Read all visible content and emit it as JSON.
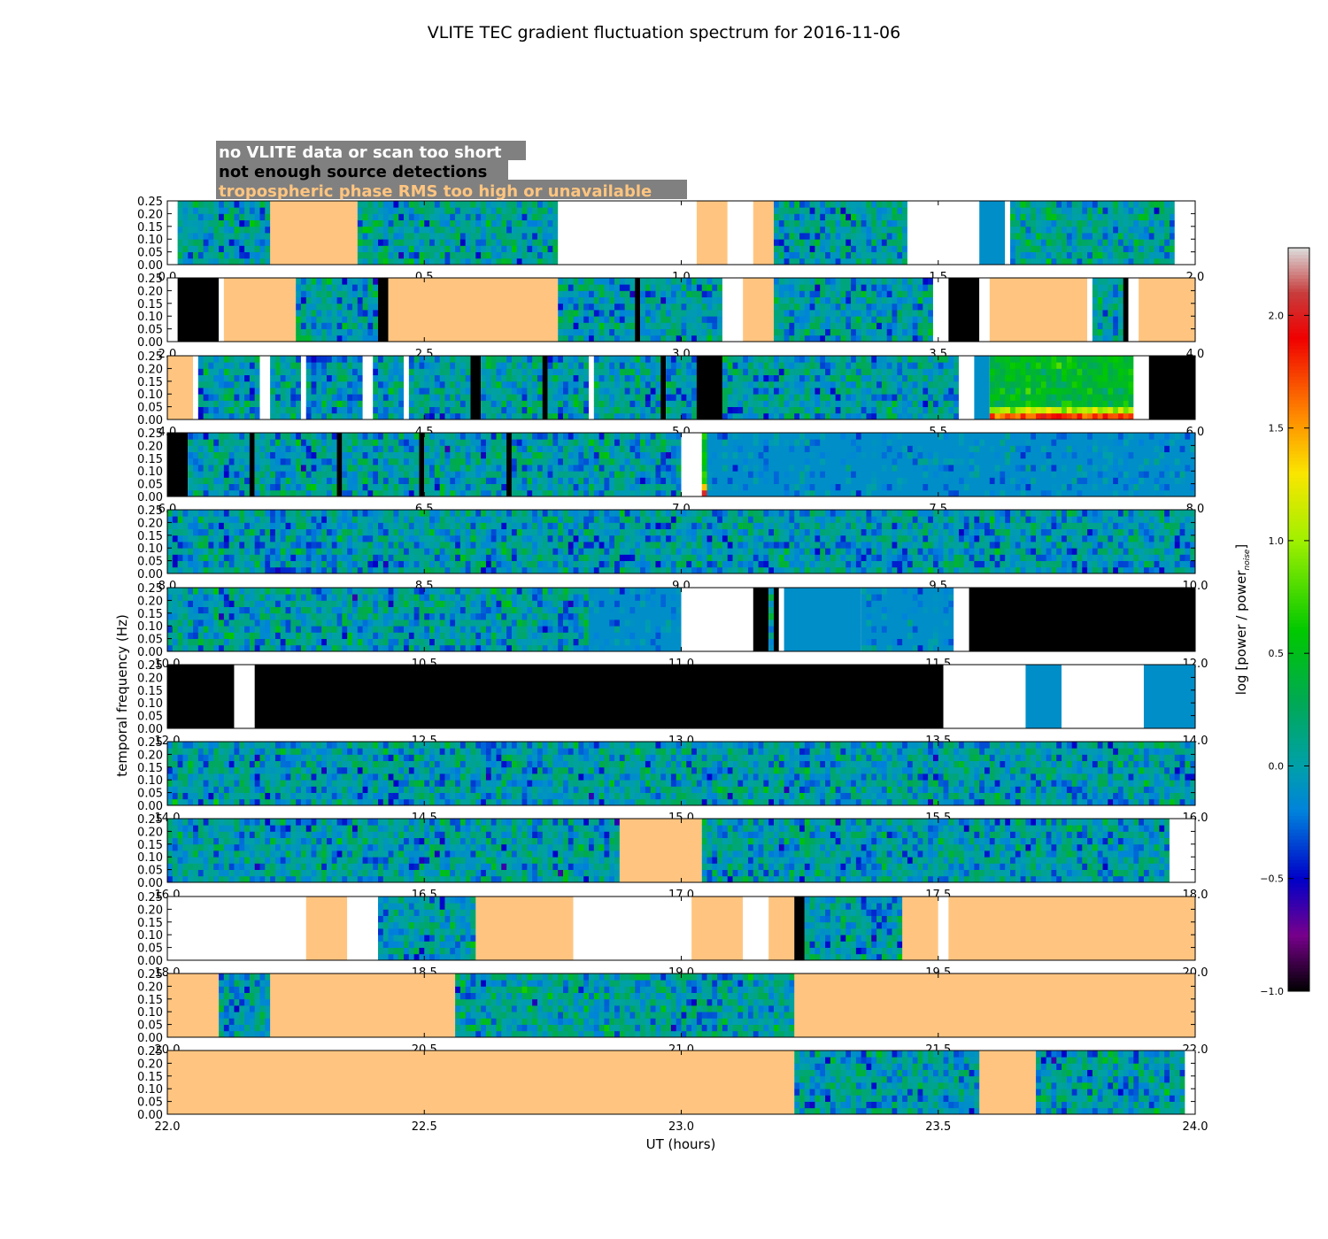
{
  "chart_data": {
    "type": "heatmap",
    "title": "VLITE TEC gradient fluctuation spectrum for 2016-11-06",
    "xlabel": "UT (hours)",
    "ylabel": "temporal frequency (Hz)",
    "colorbar_label": "log [power / power",
    "colorbar_label_sub": "noise",
    "colorbar_label_end": "]",
    "colorbar": {
      "min": -1.0,
      "max": 2.3,
      "ticks": [
        "−1.0",
        "−0.5",
        "0.0",
        "0.5",
        "1.0",
        "1.5",
        "2.0"
      ],
      "tick_values": [
        -1.0,
        -0.5,
        0.0,
        0.5,
        1.0,
        1.5,
        2.0
      ],
      "colormap": "spectral"
    },
    "y_ticks": [
      "0.00",
      "0.05",
      "0.10",
      "0.15",
      "0.20",
      "0.25"
    ],
    "y_tick_values": [
      0,
      0.05,
      0.1,
      0.15,
      0.2,
      0.25
    ],
    "ylim": [
      0,
      0.25
    ],
    "legend": {
      "placement": "top-left",
      "background": "#808080",
      "entries": [
        {
          "label": "no VLITE data or scan too short",
          "color": "#ffffff"
        },
        {
          "label": "not enough source detections",
          "color": "#000000"
        },
        {
          "label": "tropospheric phase RMS too high or unavailable",
          "color": "#ffc580"
        }
      ]
    },
    "category_colors": {
      "nodata": "#ffffff",
      "nodet": "#000000",
      "tropo": "#ffc580"
    },
    "panels": [
      {
        "xlim": [
          0,
          2
        ],
        "ticks": [
          "0.0",
          "0.5",
          "1.0",
          "1.5",
          "2.0"
        ],
        "tick_values": [
          0,
          0.5,
          1,
          1.5,
          2
        ],
        "segments": [
          [
            0,
            0.02,
            "nodata"
          ],
          [
            0.02,
            0.2,
            "data",
            0
          ],
          [
            0.2,
            0.37,
            "tropo"
          ],
          [
            0.37,
            0.76,
            "data",
            0.05
          ],
          [
            0.76,
            1.03,
            "nodata"
          ],
          [
            1.03,
            1.09,
            "tropo"
          ],
          [
            1.09,
            1.14,
            "nodata"
          ],
          [
            1.14,
            1.18,
            "tropo"
          ],
          [
            1.18,
            1.44,
            "data",
            0
          ],
          [
            1.44,
            1.58,
            "nodata"
          ],
          [
            1.58,
            1.63,
            "flat"
          ],
          [
            1.63,
            1.64,
            "nodata"
          ],
          [
            1.64,
            1.96,
            "data",
            0.05
          ],
          [
            1.96,
            2,
            "nodata"
          ]
        ]
      },
      {
        "xlim": [
          2,
          4
        ],
        "ticks": [
          "2.0",
          "2.5",
          "3.0",
          "3.5",
          "4.0"
        ],
        "tick_values": [
          2,
          2.5,
          3,
          3.5,
          4
        ],
        "segments": [
          [
            2,
            2.02,
            "nodata"
          ],
          [
            2.02,
            2.1,
            "nodet"
          ],
          [
            2.1,
            2.11,
            "nodata"
          ],
          [
            2.11,
            2.25,
            "tropo"
          ],
          [
            2.25,
            2.41,
            "data",
            0
          ],
          [
            2.41,
            2.43,
            "nodet"
          ],
          [
            2.43,
            2.76,
            "tropo"
          ],
          [
            2.76,
            2.91,
            "data",
            0
          ],
          [
            2.91,
            2.92,
            "nodet"
          ],
          [
            2.92,
            3.08,
            "data",
            0
          ],
          [
            3.08,
            3.12,
            "nodata"
          ],
          [
            3.12,
            3.18,
            "tropo"
          ],
          [
            3.18,
            3.49,
            "data",
            0
          ],
          [
            3.49,
            3.52,
            "nodata"
          ],
          [
            3.52,
            3.58,
            "nodet"
          ],
          [
            3.58,
            3.6,
            "nodata"
          ],
          [
            3.6,
            3.79,
            "tropo"
          ],
          [
            3.79,
            3.8,
            "nodata"
          ],
          [
            3.8,
            3.86,
            "data",
            0
          ],
          [
            3.86,
            3.87,
            "nodet"
          ],
          [
            3.87,
            3.89,
            "nodata"
          ],
          [
            3.89,
            4,
            "tropo"
          ]
        ]
      },
      {
        "xlim": [
          4,
          6
        ],
        "ticks": [
          "4.0",
          "4.5",
          "5.0",
          "5.5",
          "6.0"
        ],
        "tick_values": [
          4,
          4.5,
          5,
          5.5,
          6
        ],
        "segments": [
          [
            4,
            4.05,
            "tropo"
          ],
          [
            4.05,
            4.06,
            "nodata"
          ],
          [
            4.06,
            4.18,
            "data",
            0
          ],
          [
            4.18,
            4.2,
            "nodata"
          ],
          [
            4.2,
            4.26,
            "data",
            0
          ],
          [
            4.26,
            4.27,
            "nodata"
          ],
          [
            4.27,
            4.38,
            "data",
            0
          ],
          [
            4.38,
            4.4,
            "nodata"
          ],
          [
            4.4,
            4.46,
            "data",
            0
          ],
          [
            4.46,
            4.47,
            "nodata"
          ],
          [
            4.47,
            4.59,
            "data",
            0
          ],
          [
            4.59,
            4.61,
            "nodet"
          ],
          [
            4.61,
            4.73,
            "data",
            0
          ],
          [
            4.73,
            4.74,
            "nodet"
          ],
          [
            4.74,
            4.82,
            "data",
            0
          ],
          [
            4.82,
            4.83,
            "nodata"
          ],
          [
            4.83,
            4.96,
            "data",
            0
          ],
          [
            4.96,
            4.97,
            "nodet"
          ],
          [
            4.97,
            5.03,
            "data",
            0
          ],
          [
            5.03,
            5.08,
            "nodet"
          ],
          [
            5.08,
            5.14,
            "data",
            0
          ],
          [
            5.14,
            5.22,
            "data",
            0
          ],
          [
            5.22,
            5.34,
            "data",
            0
          ],
          [
            5.34,
            5.42,
            "data",
            0
          ],
          [
            5.42,
            5.54,
            "data",
            0
          ],
          [
            5.54,
            5.57,
            "nodata"
          ],
          [
            5.57,
            5.6,
            "flat"
          ],
          [
            5.6,
            5.88,
            "data",
            0.45
          ],
          [
            5.88,
            5.91,
            "nodata"
          ],
          [
            5.91,
            6,
            "nodet"
          ]
        ]
      },
      {
        "xlim": [
          6,
          8
        ],
        "ticks": [
          "6.0",
          "6.5",
          "7.0",
          "7.5",
          "8.0"
        ],
        "tick_values": [
          6,
          6.5,
          7,
          7.5,
          8
        ],
        "segments": [
          [
            6,
            6.04,
            "nodet"
          ],
          [
            6.04,
            6.16,
            "data",
            0
          ],
          [
            6.16,
            6.17,
            "nodet"
          ],
          [
            6.17,
            6.33,
            "data",
            0
          ],
          [
            6.33,
            6.34,
            "nodet"
          ],
          [
            6.34,
            6.49,
            "data",
            0
          ],
          [
            6.49,
            6.5,
            "nodet"
          ],
          [
            6.5,
            6.66,
            "data",
            0
          ],
          [
            6.66,
            6.67,
            "nodet"
          ],
          [
            6.67,
            7,
            "data",
            0
          ],
          [
            7,
            7.04,
            "nodata"
          ],
          [
            7.04,
            7.05,
            "data",
            0.5
          ],
          [
            7.05,
            8,
            "calm",
            0
          ]
        ]
      },
      {
        "xlim": [
          8,
          10
        ],
        "ticks": [
          "8.0",
          "8.5",
          "9.0",
          "9.5",
          "10.0"
        ],
        "tick_values": [
          8,
          8.5,
          9,
          9.5,
          10
        ],
        "segments": [
          [
            8,
            10,
            "data",
            -0.02
          ]
        ]
      },
      {
        "xlim": [
          10,
          12
        ],
        "ticks": [
          "10.0",
          "10.5",
          "11.0",
          "11.5",
          "12.0"
        ],
        "tick_values": [
          10,
          10.5,
          11,
          11.5,
          12
        ],
        "segments": [
          [
            10,
            10.82,
            "data",
            0
          ],
          [
            10.82,
            11,
            "calm",
            0
          ],
          [
            11,
            11.14,
            "nodata"
          ],
          [
            11.14,
            11.17,
            "nodet"
          ],
          [
            11.17,
            11.18,
            "data",
            0
          ],
          [
            11.18,
            11.19,
            "nodet"
          ],
          [
            11.19,
            11.2,
            "nodata"
          ],
          [
            11.2,
            11.35,
            "flat"
          ],
          [
            11.35,
            11.53,
            "calm",
            0
          ],
          [
            11.53,
            11.56,
            "nodata"
          ],
          [
            11.56,
            12,
            "nodet"
          ]
        ]
      },
      {
        "xlim": [
          12,
          14
        ],
        "ticks": [
          "12.0",
          "12.5",
          "13.0",
          "13.5",
          "14.0"
        ],
        "tick_values": [
          12,
          12.5,
          13,
          13.5,
          14
        ],
        "segments": [
          [
            12,
            12.13,
            "nodet"
          ],
          [
            12.13,
            12.17,
            "nodata"
          ],
          [
            12.17,
            13.51,
            "nodet"
          ],
          [
            13.51,
            13.67,
            "nodata"
          ],
          [
            13.67,
            13.74,
            "flat"
          ],
          [
            13.74,
            13.9,
            "nodata"
          ],
          [
            13.9,
            14,
            "flat"
          ]
        ]
      },
      {
        "xlim": [
          14,
          16
        ],
        "ticks": [
          "14.0",
          "14.5",
          "15.0",
          "15.5",
          "16.0"
        ],
        "tick_values": [
          14,
          14.5,
          15,
          15.5,
          16
        ],
        "segments": [
          [
            14,
            16,
            "data",
            0
          ]
        ]
      },
      {
        "xlim": [
          16,
          18
        ],
        "ticks": [
          "16.0",
          "16.5",
          "17.0",
          "17.5",
          "18.0"
        ],
        "tick_values": [
          16,
          16.5,
          17,
          17.5,
          18
        ],
        "segments": [
          [
            16,
            16.88,
            "data",
            0
          ],
          [
            16.88,
            17.04,
            "tropo"
          ],
          [
            17.04,
            17.95,
            "data",
            0
          ],
          [
            17.95,
            18,
            "nodata"
          ]
        ]
      },
      {
        "xlim": [
          18,
          20
        ],
        "ticks": [
          "18.0",
          "18.5",
          "19.0",
          "19.5",
          "20.0"
        ],
        "tick_values": [
          18,
          18.5,
          19,
          19.5,
          20
        ],
        "segments": [
          [
            18,
            18.27,
            "nodata"
          ],
          [
            18.27,
            18.35,
            "tropo"
          ],
          [
            18.35,
            18.41,
            "nodata"
          ],
          [
            18.41,
            18.6,
            "data",
            0
          ],
          [
            18.6,
            18.79,
            "tropo"
          ],
          [
            18.79,
            19.02,
            "nodata"
          ],
          [
            19.02,
            19.12,
            "tropo"
          ],
          [
            19.12,
            19.17,
            "nodata"
          ],
          [
            19.17,
            19.22,
            "tropo"
          ],
          [
            19.22,
            19.24,
            "nodet"
          ],
          [
            19.24,
            19.43,
            "data",
            0
          ],
          [
            19.43,
            19.5,
            "tropo"
          ],
          [
            19.5,
            19.52,
            "nodata"
          ],
          [
            19.52,
            20,
            "tropo"
          ]
        ]
      },
      {
        "xlim": [
          20,
          22
        ],
        "ticks": [
          "20.0",
          "20.5",
          "21.0",
          "21.5",
          "22.0"
        ],
        "tick_values": [
          20,
          20.5,
          21,
          21.5,
          22
        ],
        "segments": [
          [
            20,
            20.1,
            "tropo"
          ],
          [
            20.1,
            20.2,
            "data",
            0
          ],
          [
            20.2,
            20.56,
            "tropo"
          ],
          [
            20.56,
            21.22,
            "data",
            0.03
          ],
          [
            21.22,
            22,
            "tropo"
          ]
        ]
      },
      {
        "xlim": [
          22,
          24
        ],
        "ticks": [
          "22.0",
          "22.5",
          "23.0",
          "23.5",
          "24.0"
        ],
        "tick_values": [
          22,
          22.5,
          23,
          23.5,
          24
        ],
        "segments": [
          [
            22,
            23.22,
            "tropo"
          ],
          [
            23.22,
            23.58,
            "data",
            0
          ],
          [
            23.58,
            23.69,
            "tropo"
          ],
          [
            23.69,
            23.98,
            "data",
            0
          ],
          [
            23.98,
            24,
            "nodata"
          ]
        ]
      }
    ]
  }
}
